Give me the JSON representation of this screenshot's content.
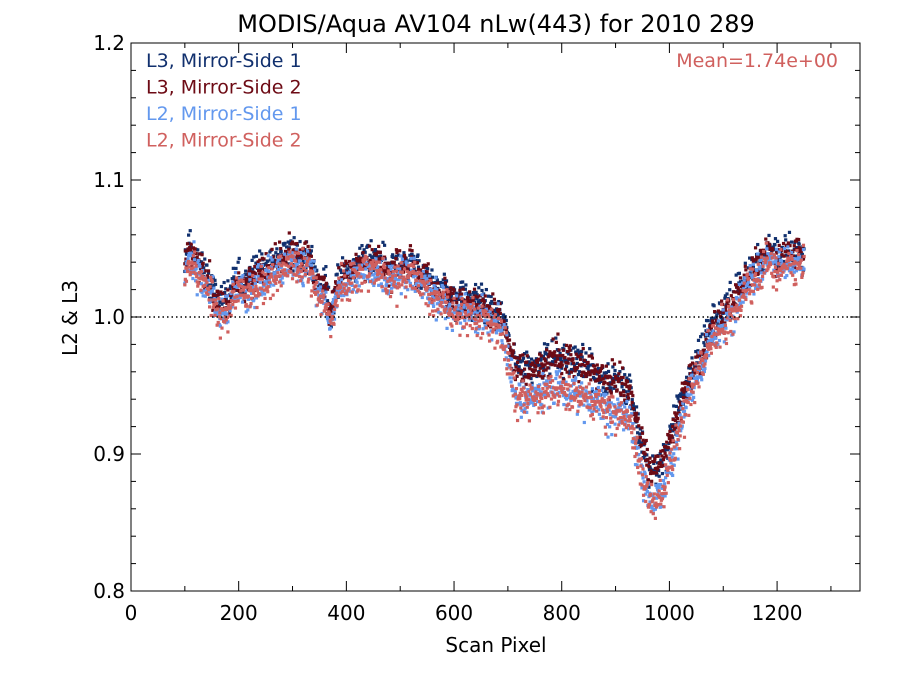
{
  "chart_data": {
    "type": "scatter",
    "title": "MODIS/Aqua AV104 nLw(443) for 2010 289",
    "xlabel": "Scan Pixel",
    "ylabel": "L2 & L3",
    "xlim": [
      0,
      1354
    ],
    "ylim": [
      0.8,
      1.2
    ],
    "xticks": [
      0,
      200,
      400,
      600,
      800,
      1000,
      1200
    ],
    "xtick_labels": [
      "0",
      "200",
      "400",
      "600",
      "800",
      "1000",
      "1200"
    ],
    "yticks": [
      0.8,
      0.9,
      1.0,
      1.1,
      1.2
    ],
    "ytick_labels": [
      "0.8",
      "0.9",
      "1.0",
      "1.1",
      "1.2"
    ],
    "reference_line": 1.0,
    "annotation": "Mean=1.74e+00",
    "annotation_color": "#d0605e",
    "legend_position": "top-left",
    "point_range": [
      100,
      1250
    ],
    "profile": [
      [
        100,
        1.04
      ],
      [
        110,
        1.05
      ],
      [
        120,
        1.04
      ],
      [
        135,
        1.03
      ],
      [
        150,
        1.02
      ],
      [
        165,
        1.005
      ],
      [
        180,
        1.01
      ],
      [
        200,
        1.025
      ],
      [
        215,
        1.02
      ],
      [
        230,
        1.03
      ],
      [
        250,
        1.03
      ],
      [
        265,
        1.035
      ],
      [
        280,
        1.04
      ],
      [
        295,
        1.045
      ],
      [
        310,
        1.04
      ],
      [
        330,
        1.04
      ],
      [
        345,
        1.025
      ],
      [
        360,
        1.02
      ],
      [
        372,
        1.0
      ],
      [
        385,
        1.025
      ],
      [
        400,
        1.03
      ],
      [
        420,
        1.035
      ],
      [
        440,
        1.04
      ],
      [
        460,
        1.04
      ],
      [
        480,
        1.03
      ],
      [
        500,
        1.035
      ],
      [
        520,
        1.035
      ],
      [
        540,
        1.03
      ],
      [
        560,
        1.02
      ],
      [
        580,
        1.015
      ],
      [
        600,
        1.01
      ],
      [
        620,
        1.01
      ],
      [
        640,
        1.005
      ],
      [
        660,
        1.005
      ],
      [
        680,
        1.0
      ],
      [
        695,
        0.99
      ],
      [
        705,
        0.97
      ],
      [
        715,
        0.955
      ],
      [
        730,
        0.955
      ],
      [
        750,
        0.955
      ],
      [
        770,
        0.96
      ],
      [
        790,
        0.965
      ],
      [
        810,
        0.96
      ],
      [
        830,
        0.96
      ],
      [
        850,
        0.955
      ],
      [
        870,
        0.95
      ],
      [
        890,
        0.945
      ],
      [
        910,
        0.945
      ],
      [
        925,
        0.94
      ],
      [
        935,
        0.925
      ],
      [
        945,
        0.905
      ],
      [
        955,
        0.89
      ],
      [
        965,
        0.88
      ],
      [
        975,
        0.88
      ],
      [
        990,
        0.89
      ],
      [
        1005,
        0.91
      ],
      [
        1020,
        0.93
      ],
      [
        1040,
        0.955
      ],
      [
        1060,
        0.97
      ],
      [
        1080,
        0.99
      ],
      [
        1100,
        1.0
      ],
      [
        1120,
        1.01
      ],
      [
        1140,
        1.025
      ],
      [
        1160,
        1.035
      ],
      [
        1180,
        1.045
      ],
      [
        1200,
        1.04
      ],
      [
        1220,
        1.045
      ],
      [
        1240,
        1.045
      ],
      [
        1250,
        1.04
      ]
    ],
    "series": [
      {
        "name": "L3, Mirror-Side 1",
        "color": "#11306e",
        "offset": 0.003,
        "split": 0.005,
        "noise": 0.01,
        "seed": 11
      },
      {
        "name": "L3, Mirror-Side 2",
        "color": "#6d0a14",
        "offset": 0.0,
        "split": 0.008,
        "noise": 0.01,
        "seed": 23
      },
      {
        "name": "L2, Mirror-Side 1",
        "color": "#6398ee",
        "offset": -0.002,
        "split": -0.012,
        "noise": 0.011,
        "seed": 37
      },
      {
        "name": "L2, Mirror-Side 2",
        "color": "#d0605e",
        "offset": -0.003,
        "split": -0.012,
        "noise": 0.011,
        "seed": 53
      }
    ]
  }
}
